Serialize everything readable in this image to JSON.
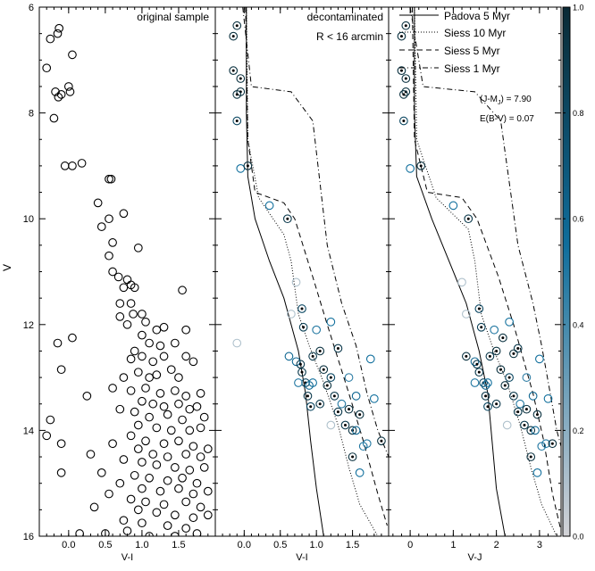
{
  "figure": {
    "ylabel": "V",
    "colorbar": {
      "min": 0.0,
      "max": 1.0,
      "ticks": [
        "0.0",
        "0.2",
        "0.4",
        "0.6",
        "0.8",
        "1.0"
      ],
      "colors": [
        "#d3d3d7",
        "#0f6e9c",
        "#0a2a35"
      ]
    }
  },
  "chart_data": [
    {
      "type": "scatter",
      "panel": "left",
      "title": "original sample",
      "xlabel": "V-I",
      "ylabel": "V",
      "xlim": [
        -0.4,
        2.0
      ],
      "ylim": [
        16.0,
        6.0
      ],
      "xticks": [
        "0.0",
        "0.5",
        "1.0",
        "1.5"
      ],
      "yticks": [
        "6",
        "8",
        "10",
        "12",
        "14",
        "16"
      ],
      "points": [
        [
          -0.25,
          6.6
        ],
        [
          -0.15,
          6.5
        ],
        [
          -0.13,
          6.4
        ],
        [
          0.05,
          6.9
        ],
        [
          -0.3,
          7.15
        ],
        [
          -0.18,
          7.6
        ],
        [
          -0.14,
          7.7
        ],
        [
          -0.1,
          7.65
        ],
        [
          -0.2,
          8.1
        ],
        [
          0.0,
          7.5
        ],
        [
          0.02,
          7.6
        ],
        [
          -0.05,
          9.0
        ],
        [
          0.05,
          9.0
        ],
        [
          0.18,
          8.95
        ],
        [
          0.55,
          9.25
        ],
        [
          0.58,
          9.25
        ],
        [
          0.4,
          9.7
        ],
        [
          0.55,
          10.0
        ],
        [
          0.75,
          9.9
        ],
        [
          0.45,
          10.15
        ],
        [
          0.6,
          10.45
        ],
        [
          0.95,
          10.55
        ],
        [
          0.55,
          10.7
        ],
        [
          0.6,
          11.0
        ],
        [
          0.68,
          11.1
        ],
        [
          0.8,
          11.15
        ],
        [
          0.75,
          11.3
        ],
        [
          0.85,
          11.25
        ],
        [
          0.9,
          11.3
        ],
        [
          0.7,
          11.6
        ],
        [
          0.85,
          11.6
        ],
        [
          0.88,
          11.8
        ],
        [
          0.7,
          11.85
        ],
        [
          0.8,
          12.0
        ],
        [
          1.0,
          11.8
        ],
        [
          1.05,
          11.95
        ],
        [
          1.2,
          12.1
        ],
        [
          1.3,
          12.05
        ],
        [
          1.0,
          12.2
        ],
        [
          1.55,
          11.35
        ],
        [
          1.6,
          12.1
        ],
        [
          0.9,
          12.5
        ],
        [
          1.1,
          12.35
        ],
        [
          1.25,
          12.4
        ],
        [
          1.45,
          12.35
        ],
        [
          0.05,
          12.25
        ],
        [
          -0.15,
          12.35
        ],
        [
          0.85,
          12.65
        ],
        [
          1.0,
          12.6
        ],
        [
          1.15,
          12.7
        ],
        [
          1.3,
          12.6
        ],
        [
          1.6,
          12.6
        ],
        [
          1.7,
          12.7
        ],
        [
          0.95,
          12.9
        ],
        [
          1.1,
          13.0
        ],
        [
          1.2,
          12.95
        ],
        [
          1.4,
          12.85
        ],
        [
          1.5,
          13.0
        ],
        [
          0.75,
          13.0
        ],
        [
          -0.1,
          12.85
        ],
        [
          0.6,
          13.2
        ],
        [
          0.85,
          13.25
        ],
        [
          1.05,
          13.2
        ],
        [
          1.25,
          13.3
        ],
        [
          1.45,
          13.25
        ],
        [
          1.6,
          13.35
        ],
        [
          1.8,
          13.3
        ],
        [
          0.25,
          13.35
        ],
        [
          1.0,
          13.45
        ],
        [
          1.15,
          13.5
        ],
        [
          1.3,
          13.55
        ],
        [
          1.5,
          13.5
        ],
        [
          1.65,
          13.6
        ],
        [
          1.75,
          13.55
        ],
        [
          0.7,
          13.6
        ],
        [
          0.9,
          13.65
        ],
        [
          1.1,
          13.75
        ],
        [
          1.35,
          13.7
        ],
        [
          1.55,
          13.8
        ],
        [
          1.85,
          13.75
        ],
        [
          0.95,
          13.9
        ],
        [
          1.2,
          13.95
        ],
        [
          1.4,
          14.0
        ],
        [
          1.65,
          14.0
        ],
        [
          1.8,
          13.95
        ],
        [
          -0.3,
          14.1
        ],
        [
          -0.25,
          13.8
        ],
        [
          0.85,
          14.1
        ],
        [
          1.05,
          14.2
        ],
        [
          1.3,
          14.25
        ],
        [
          1.5,
          14.2
        ],
        [
          1.7,
          14.3
        ],
        [
          0.6,
          14.25
        ],
        [
          0.95,
          14.35
        ],
        [
          1.15,
          14.45
        ],
        [
          1.35,
          14.5
        ],
        [
          1.6,
          14.45
        ],
        [
          1.8,
          14.5
        ],
        [
          1.9,
          14.35
        ],
        [
          0.3,
          14.45
        ],
        [
          -0.1,
          14.25
        ],
        [
          0.75,
          14.55
        ],
        [
          1.0,
          14.6
        ],
        [
          1.2,
          14.65
        ],
        [
          1.45,
          14.7
        ],
        [
          1.65,
          14.75
        ],
        [
          1.85,
          14.7
        ],
        [
          0.45,
          14.8
        ],
        [
          0.9,
          14.85
        ],
        [
          1.1,
          14.9
        ],
        [
          1.35,
          14.95
        ],
        [
          1.55,
          14.9
        ],
        [
          1.75,
          15.0
        ],
        [
          -0.1,
          14.8
        ],
        [
          0.7,
          15.0
        ],
        [
          1.0,
          15.1
        ],
        [
          1.25,
          15.15
        ],
        [
          1.5,
          15.1
        ],
        [
          1.7,
          15.2
        ],
        [
          1.9,
          15.15
        ],
        [
          0.55,
          15.2
        ],
        [
          0.85,
          15.3
        ],
        [
          1.05,
          15.35
        ],
        [
          1.3,
          15.4
        ],
        [
          1.6,
          15.35
        ],
        [
          1.8,
          15.45
        ],
        [
          0.35,
          15.45
        ],
        [
          0.95,
          15.5
        ],
        [
          1.2,
          15.55
        ],
        [
          1.45,
          15.6
        ],
        [
          1.7,
          15.65
        ],
        [
          0.75,
          15.7
        ],
        [
          1.0,
          15.75
        ],
        [
          1.35,
          15.8
        ],
        [
          1.6,
          15.85
        ],
        [
          1.9,
          15.6
        ],
        [
          0.5,
          15.95
        ],
        [
          0.15,
          15.95
        ],
        [
          0.8,
          15.9
        ],
        [
          1.1,
          16.0
        ],
        [
          1.45,
          16.0
        ],
        [
          1.75,
          15.95
        ]
      ]
    },
    {
      "type": "scatter",
      "panel": "middle",
      "title": "decontaminated",
      "subtitle": "R < 16 arcmin",
      "xlabel": "V-I",
      "xlim": [
        -0.4,
        2.0
      ],
      "ylim": [
        16.0,
        6.0
      ],
      "xticks": [
        "0.0",
        "0.5",
        "1.0",
        "1.5"
      ],
      "legend": {
        "placement": "top-right",
        "entries": [
          {
            "label": "Padova 5 Myr",
            "dash": "solid"
          },
          {
            "label": "Siess 10 Myr",
            "dash": "dotted"
          },
          {
            "label": "Siess 5 Myr",
            "dash": "dashed"
          },
          {
            "label": "Siess 1 Myr",
            "dash": "dashdot"
          }
        ]
      },
      "annotations": [
        "(J-M",
        "J",
        ") = 7.90",
        "E(B-V) = 0.07"
      ],
      "points": [
        [
          -0.15,
          6.55,
          0.95
        ],
        [
          -0.1,
          6.35,
          0.95
        ],
        [
          -0.15,
          7.2,
          0.95
        ],
        [
          -0.05,
          7.35,
          0.95
        ],
        [
          -0.05,
          7.6,
          0.95
        ],
        [
          -0.1,
          7.65,
          0.95
        ],
        [
          -0.1,
          8.15,
          0.8
        ],
        [
          -0.05,
          9.05,
          0.55
        ],
        [
          0.05,
          9.0,
          0.95
        ],
        [
          0.35,
          9.75,
          0.55
        ],
        [
          0.6,
          10.0,
          0.9
        ],
        [
          0.72,
          11.2,
          0.1
        ],
        [
          0.65,
          11.8,
          0.1
        ],
        [
          -0.1,
          12.35,
          0.1
        ],
        [
          0.62,
          12.6,
          0.6
        ],
        [
          0.8,
          11.7,
          0.8
        ],
        [
          0.82,
          12.05,
          0.85
        ],
        [
          0.72,
          12.7,
          0.6
        ],
        [
          0.78,
          12.75,
          0.9
        ],
        [
          0.8,
          12.9,
          0.9
        ],
        [
          0.85,
          13.1,
          0.8
        ],
        [
          0.9,
          13.15,
          0.6
        ],
        [
          0.88,
          13.35,
          0.9
        ],
        [
          0.92,
          13.55,
          0.8
        ],
        [
          1.0,
          12.1,
          0.5
        ],
        [
          1.05,
          12.5,
          0.95
        ],
        [
          1.05,
          13.5,
          0.9
        ],
        [
          0.95,
          12.6,
          0.9
        ],
        [
          1.1,
          12.85,
          0.95
        ],
        [
          1.15,
          13.15,
          0.95
        ],
        [
          1.2,
          11.95,
          0.55
        ],
        [
          1.2,
          13.0,
          0.8
        ],
        [
          1.25,
          13.35,
          0.9
        ],
        [
          1.3,
          12.45,
          0.9
        ],
        [
          1.3,
          13.65,
          0.9
        ],
        [
          1.35,
          13.5,
          0.5
        ],
        [
          1.4,
          13.9,
          0.9
        ],
        [
          1.45,
          13.6,
          0.95
        ],
        [
          1.5,
          14.0,
          0.95
        ],
        [
          1.5,
          14.5,
          0.95
        ],
        [
          1.55,
          13.35,
          0.6
        ],
        [
          1.55,
          14.0,
          0.6
        ],
        [
          1.6,
          13.7,
          0.95
        ],
        [
          1.65,
          14.3,
          0.5
        ],
        [
          1.7,
          14.25,
          0.5
        ],
        [
          1.75,
          12.65,
          0.55
        ],
        [
          1.8,
          13.4,
          0.55
        ],
        [
          1.6,
          14.8,
          0.55
        ],
        [
          1.45,
          13.0,
          0.45
        ],
        [
          1.2,
          13.9,
          0.1
        ],
        [
          0.75,
          13.1,
          0.5
        ],
        [
          1.9,
          14.2,
          0.95
        ],
        [
          0.95,
          13.1,
          0.55
        ]
      ]
    },
    {
      "type": "scatter",
      "panel": "right",
      "xlabel": "V-J",
      "xlim": [
        -0.5,
        3.5
      ],
      "ylim": [
        16.0,
        6.0
      ],
      "xticks": [
        "0",
        "1",
        "2",
        "3"
      ],
      "points": [
        [
          -0.2,
          6.55,
          0.95
        ],
        [
          -0.1,
          6.35,
          0.95
        ],
        [
          -0.2,
          7.2,
          0.95
        ],
        [
          -0.1,
          7.35,
          0.95
        ],
        [
          -0.1,
          7.6,
          0.95
        ],
        [
          -0.15,
          7.65,
          0.95
        ],
        [
          -0.15,
          8.15,
          0.8
        ],
        [
          0.0,
          9.05,
          0.55
        ],
        [
          0.25,
          9.0,
          0.95
        ],
        [
          1.0,
          9.75,
          0.55
        ],
        [
          1.35,
          10.0,
          0.9
        ],
        [
          1.2,
          11.2,
          0.1
        ],
        [
          1.3,
          11.8,
          0.1
        ],
        [
          1.3,
          12.6,
          0.95
        ],
        [
          1.6,
          11.7,
          0.8
        ],
        [
          1.65,
          12.05,
          0.85
        ],
        [
          1.5,
          12.7,
          0.6
        ],
        [
          1.55,
          12.75,
          0.9
        ],
        [
          1.6,
          12.9,
          0.9
        ],
        [
          1.7,
          13.1,
          0.8
        ],
        [
          1.75,
          13.15,
          0.6
        ],
        [
          1.75,
          13.35,
          0.9
        ],
        [
          1.8,
          13.55,
          0.8
        ],
        [
          1.95,
          12.1,
          0.5
        ],
        [
          2.0,
          12.5,
          0.95
        ],
        [
          2.0,
          13.5,
          0.9
        ],
        [
          1.85,
          12.6,
          0.9
        ],
        [
          2.1,
          12.85,
          0.95
        ],
        [
          2.2,
          13.15,
          0.95
        ],
        [
          2.3,
          11.95,
          0.55
        ],
        [
          2.3,
          13.0,
          0.8
        ],
        [
          2.4,
          13.35,
          0.9
        ],
        [
          2.5,
          12.45,
          0.9
        ],
        [
          2.5,
          13.65,
          0.9
        ],
        [
          2.55,
          13.5,
          0.5
        ],
        [
          2.65,
          13.9,
          0.9
        ],
        [
          2.7,
          13.6,
          0.95
        ],
        [
          2.8,
          14.0,
          0.95
        ],
        [
          2.8,
          14.5,
          0.95
        ],
        [
          2.85,
          13.35,
          0.6
        ],
        [
          2.9,
          14.0,
          0.6
        ],
        [
          2.95,
          13.7,
          0.95
        ],
        [
          3.05,
          14.3,
          0.5
        ],
        [
          3.15,
          14.25,
          0.5
        ],
        [
          3.0,
          12.65,
          0.55
        ],
        [
          3.2,
          13.4,
          0.55
        ],
        [
          2.95,
          14.8,
          0.55
        ],
        [
          2.7,
          13.0,
          0.45
        ],
        [
          2.25,
          13.9,
          0.1
        ],
        [
          1.5,
          13.1,
          0.5
        ],
        [
          3.3,
          14.25,
          0.95
        ],
        [
          1.8,
          13.1,
          0.55
        ],
        [
          2.15,
          12.25,
          0.95
        ],
        [
          2.4,
          12.55,
          0.95
        ]
      ]
    }
  ]
}
